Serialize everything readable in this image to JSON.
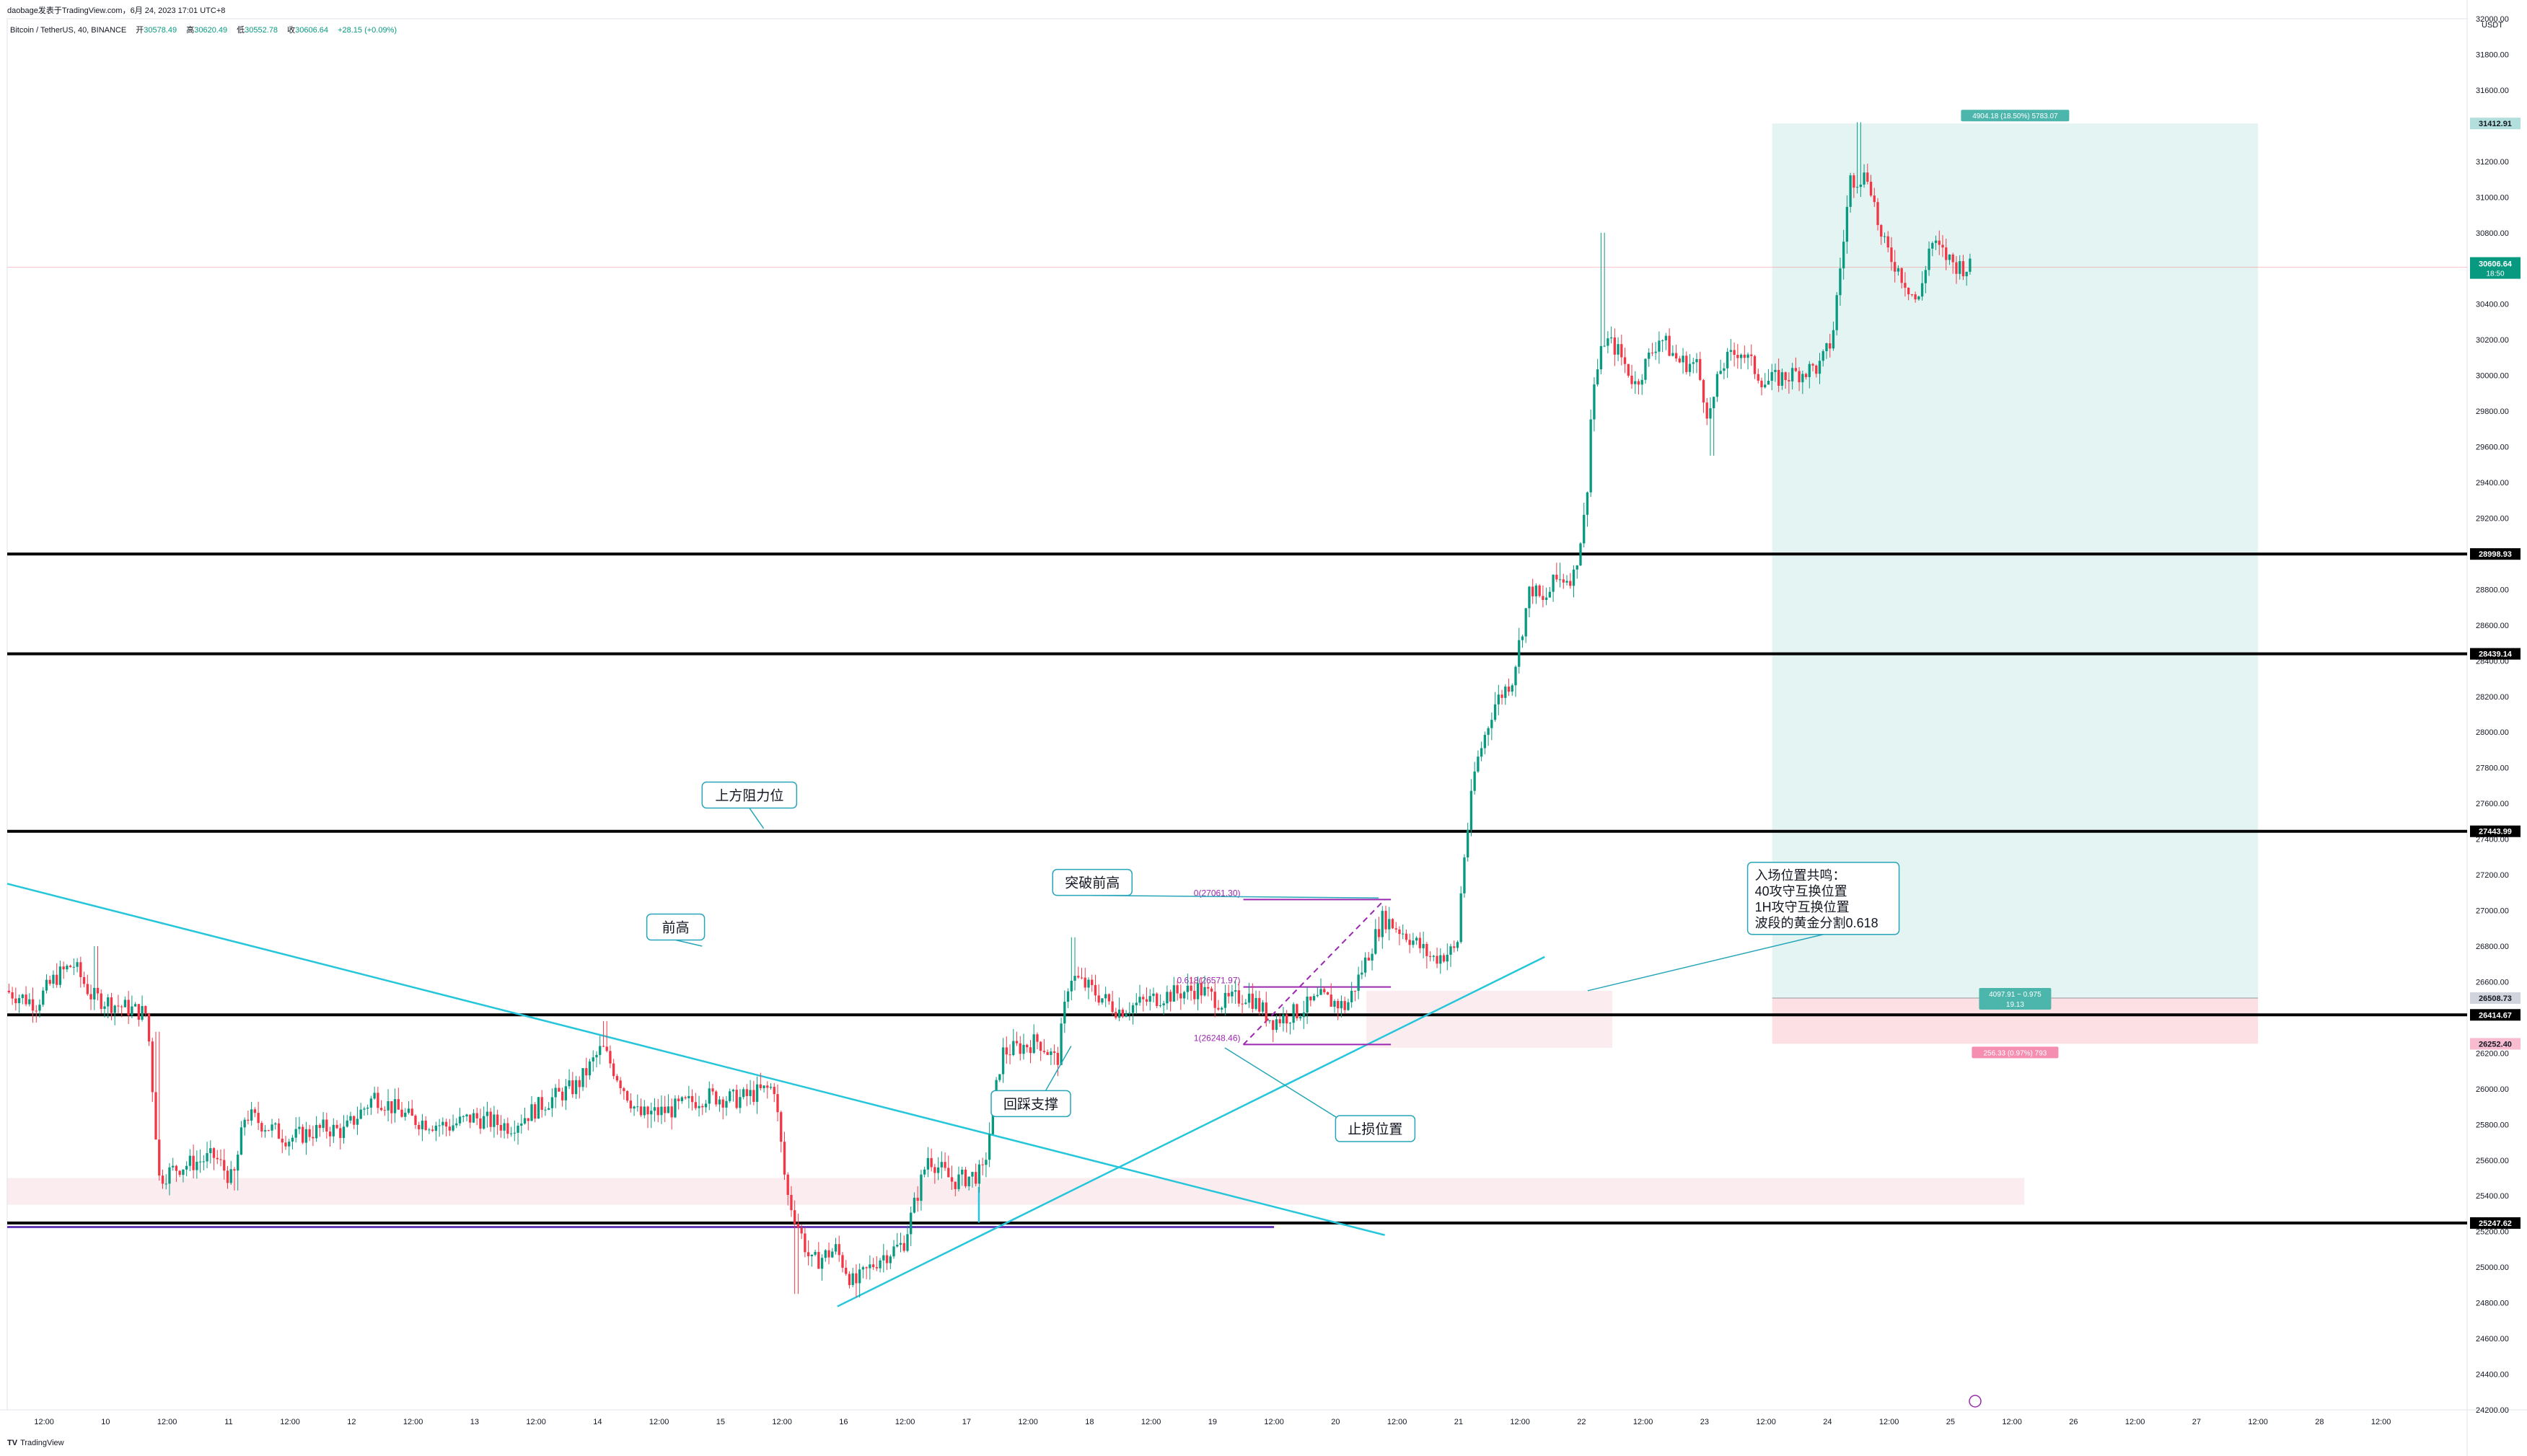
{
  "header": {
    "topline": "daobage发表于TradingView.com，6月 24, 2023 17:01 UTC+8",
    "symbol": "Bitcoin / TetherUS, 40, BINANCE",
    "ohlc": {
      "o_label": "开",
      "o": "30578.49",
      "h_label": "高",
      "h": "30620.49",
      "l_label": "低",
      "l": "30552.78",
      "c_label": "收",
      "c": "30606.64",
      "chg": "+28.15 (+0.09%)"
    }
  },
  "footer": {
    "brand": "TradingView"
  },
  "chart_data": {
    "type": "candlestick",
    "currency": "USDT",
    "y_range": [
      24200,
      32000
    ],
    "y_ticks": [
      32000,
      31800,
      31600,
      31400,
      31200,
      31000,
      30800,
      30600,
      30400,
      30200,
      30000,
      29800,
      29600,
      29400,
      29200,
      29000,
      28800,
      28600,
      28400,
      28200,
      28000,
      27800,
      27600,
      27400,
      27200,
      27000,
      26800,
      26600,
      26400,
      26200,
      26000,
      25800,
      25600,
      25400,
      25200,
      25000,
      24800,
      24600,
      24400,
      24200
    ],
    "x_ticks": [
      {
        "label": "12:00",
        "d": 8.5
      },
      {
        "label": "10",
        "d": 9
      },
      {
        "label": "12:00",
        "d": 9.5
      },
      {
        "label": "11",
        "d": 10
      },
      {
        "label": "12:00",
        "d": 10.5
      },
      {
        "label": "12",
        "d": 11
      },
      {
        "label": "12:00",
        "d": 11.5
      },
      {
        "label": "13",
        "d": 12
      },
      {
        "label": "12:00",
        "d": 12.5
      },
      {
        "label": "14",
        "d": 13
      },
      {
        "label": "12:00",
        "d": 13.5
      },
      {
        "label": "15",
        "d": 14
      },
      {
        "label": "12:00",
        "d": 14.5
      },
      {
        "label": "16",
        "d": 15
      },
      {
        "label": "12:00",
        "d": 15.5
      },
      {
        "label": "17",
        "d": 16
      },
      {
        "label": "12:00",
        "d": 16.5
      },
      {
        "label": "18",
        "d": 17
      },
      {
        "label": "12:00",
        "d": 17.5
      },
      {
        "label": "19",
        "d": 18
      },
      {
        "label": "12:00",
        "d": 18.5
      },
      {
        "label": "20",
        "d": 19
      },
      {
        "label": "12:00",
        "d": 19.5
      },
      {
        "label": "21",
        "d": 20
      },
      {
        "label": "12:00",
        "d": 20.5
      },
      {
        "label": "22",
        "d": 21
      },
      {
        "label": "12:00",
        "d": 21.5
      },
      {
        "label": "23",
        "d": 22
      },
      {
        "label": "12:00",
        "d": 22.5
      },
      {
        "label": "24",
        "d": 23
      },
      {
        "label": "12:00",
        "d": 23.5
      },
      {
        "label": "25",
        "d": 24
      },
      {
        "label": "12:00",
        "d": 24.5
      },
      {
        "label": "26",
        "d": 25
      },
      {
        "label": "12:00",
        "d": 25.5
      },
      {
        "label": "27",
        "d": 26
      },
      {
        "label": "12:00",
        "d": 26.5
      },
      {
        "label": "28",
        "d": 27
      },
      {
        "label": "12:00",
        "d": 27.5
      }
    ],
    "x_range": [
      8.2,
      28.2
    ],
    "price_path": [
      [
        8.2,
        26550
      ],
      [
        8.45,
        26480
      ],
      [
        8.6,
        26620
      ],
      [
        8.75,
        26700
      ],
      [
        8.9,
        26520
      ],
      [
        9.1,
        26470
      ],
      [
        9.35,
        26420
      ],
      [
        9.45,
        25500
      ],
      [
        9.6,
        25560
      ],
      [
        9.9,
        25620
      ],
      [
        10.05,
        25480
      ],
      [
        10.15,
        25860
      ],
      [
        10.5,
        25720
      ],
      [
        10.8,
        25780
      ],
      [
        10.95,
        25760
      ],
      [
        11.2,
        25960
      ],
      [
        11.5,
        25830
      ],
      [
        11.8,
        25790
      ],
      [
        12.0,
        25840
      ],
      [
        12.3,
        25790
      ],
      [
        12.6,
        25930
      ],
      [
        12.85,
        26020
      ],
      [
        13.05,
        26230
      ],
      [
        13.35,
        25850
      ],
      [
        13.6,
        25880
      ],
      [
        13.9,
        25960
      ],
      [
        14.15,
        25940
      ],
      [
        14.45,
        26010
      ],
      [
        14.55,
        25420
      ],
      [
        14.75,
        25020
      ],
      [
        14.95,
        25100
      ],
      [
        15.1,
        24900
      ],
      [
        15.3,
        25050
      ],
      [
        15.5,
        25130
      ],
      [
        15.7,
        25620
      ],
      [
        15.9,
        25480
      ],
      [
        16.15,
        25530
      ],
      [
        16.3,
        26200
      ],
      [
        16.6,
        26270
      ],
      [
        16.75,
        26150
      ],
      [
        16.85,
        26640
      ],
      [
        17.0,
        26570
      ],
      [
        17.25,
        26440
      ],
      [
        17.6,
        26520
      ],
      [
        17.9,
        26560
      ],
      [
        18.1,
        26480
      ],
      [
        18.3,
        26530
      ],
      [
        18.5,
        26380
      ],
      [
        18.7,
        26430
      ],
      [
        18.9,
        26510
      ],
      [
        19.1,
        26460
      ],
      [
        19.2,
        26620
      ],
      [
        19.4,
        26960
      ],
      [
        19.6,
        26860
      ],
      [
        19.8,
        26730
      ],
      [
        20.0,
        26780
      ],
      [
        20.05,
        27250
      ],
      [
        20.15,
        27800
      ],
      [
        20.3,
        28150
      ],
      [
        20.45,
        28300
      ],
      [
        20.6,
        28820
      ],
      [
        20.7,
        28720
      ],
      [
        20.8,
        28850
      ],
      [
        20.95,
        28880
      ],
      [
        21.05,
        29250
      ],
      [
        21.1,
        29900
      ],
      [
        21.2,
        30200
      ],
      [
        21.3,
        30150
      ],
      [
        21.45,
        29950
      ],
      [
        21.65,
        30220
      ],
      [
        21.8,
        30080
      ],
      [
        21.95,
        30060
      ],
      [
        22.05,
        29760
      ],
      [
        22.15,
        30050
      ],
      [
        22.3,
        30150
      ],
      [
        22.5,
        29960
      ],
      [
        22.7,
        30000
      ],
      [
        22.95,
        30050
      ],
      [
        23.05,
        30200
      ],
      [
        23.2,
        31100
      ],
      [
        23.35,
        31120
      ],
      [
        23.45,
        30760
      ],
      [
        23.6,
        30580
      ],
      [
        23.75,
        30400
      ],
      [
        23.85,
        30750
      ],
      [
        24.05,
        30620
      ],
      [
        24.15,
        30606
      ]
    ],
    "price_extremes": [
      [
        8.9,
        26800
      ],
      [
        9.4,
        26320
      ],
      [
        10.05,
        25430
      ],
      [
        13.05,
        26380
      ],
      [
        13.4,
        25780
      ],
      [
        14.6,
        24850
      ],
      [
        15.1,
        24830
      ],
      [
        16.85,
        26850
      ],
      [
        19.4,
        27020
      ],
      [
        20.8,
        28950
      ],
      [
        21.15,
        30800
      ],
      [
        22.05,
        29550
      ],
      [
        23.25,
        31420
      ],
      [
        23.75,
        30420
      ]
    ],
    "horizontal_levels": [
      {
        "price": 28998.93,
        "label": "28998.93"
      },
      {
        "price": 28439.14,
        "label": "28439.14"
      },
      {
        "price": 27443.99,
        "label": "27443.99"
      },
      {
        "price": 26414.67,
        "label": "26414.67"
      },
      {
        "price": 25247.62,
        "label": "25247.62"
      }
    ],
    "purple_line": {
      "price": 25225,
      "x_to": 18.5
    },
    "current_price": {
      "value": "30606.64",
      "countdown": "18:50",
      "price": 30606.64
    },
    "position": {
      "entry": 26508.73,
      "entry_label": "26508.73",
      "target": 31412.91,
      "target_label": "31412.91",
      "stop": 26252.4,
      "stop_label": "26252.40",
      "x_from": 22.55,
      "x_to": 26.5,
      "profit_text": "4904.18 (18.50%) 5783.07",
      "mid_text_1": "4097.91 ~ 0.975",
      "mid_text_2": "19.13",
      "loss_text": "256.33 (0.97%) 793"
    },
    "zones": [
      {
        "from_x": 8.2,
        "to_x": 24.6,
        "lo": 25350,
        "hi": 25500
      },
      {
        "from_x": 19.25,
        "to_x": 21.25,
        "lo": 26230,
        "hi": 26550
      }
    ],
    "trendlines": [
      {
        "x1": 8.2,
        "y1": 27150,
        "x2": 19.4,
        "y2": 25180
      },
      {
        "x1": 14.95,
        "y1": 24780,
        "x2": 20.7,
        "y2": 26740
      },
      {
        "x1": 16.1,
        "y1": 25250,
        "x2": 16.1,
        "y2": 25450
      }
    ],
    "fib": {
      "x1": 18.25,
      "x2": 19.45,
      "lines": [
        {
          "price": 27061.3,
          "label": "0(27061.30)"
        },
        {
          "price": 26571,
          "label": "0.618(26571.97)"
        },
        {
          "price": 26248.46,
          "label": "1(26248.46)"
        }
      ],
      "dash": {
        "x1": 18.25,
        "y1": 26248,
        "x2": 19.4,
        "y2": 27061
      }
    },
    "annotations": [
      {
        "text": "上方阻力位",
        "x": 13.85,
        "price": 27720,
        "tip_x": 14.35,
        "tip_price": 27460
      },
      {
        "text": "突破前高",
        "x": 16.7,
        "price": 27230,
        "tip_x": 19.35,
        "tip_price": 27070
      },
      {
        "text": "前高",
        "x": 13.4,
        "price": 26980,
        "tip_x": 13.85,
        "tip_price": 26800
      },
      {
        "text": "回踩支撑",
        "x": 16.2,
        "price": 25990,
        "tip_x": 16.85,
        "tip_price": 26240
      },
      {
        "text": "止损位置",
        "x": 19.0,
        "price": 25850,
        "tip_x": 18.1,
        "tip_price": 26230
      },
      {
        "lines": [
          "入场位置共鸣：",
          "40攻守互换位置",
          "1H攻守互换位置",
          "波段的黄金分割0.618"
        ],
        "x": 22.35,
        "price": 27270,
        "tip_x": 21.05,
        "tip_price": 26550
      }
    ]
  }
}
